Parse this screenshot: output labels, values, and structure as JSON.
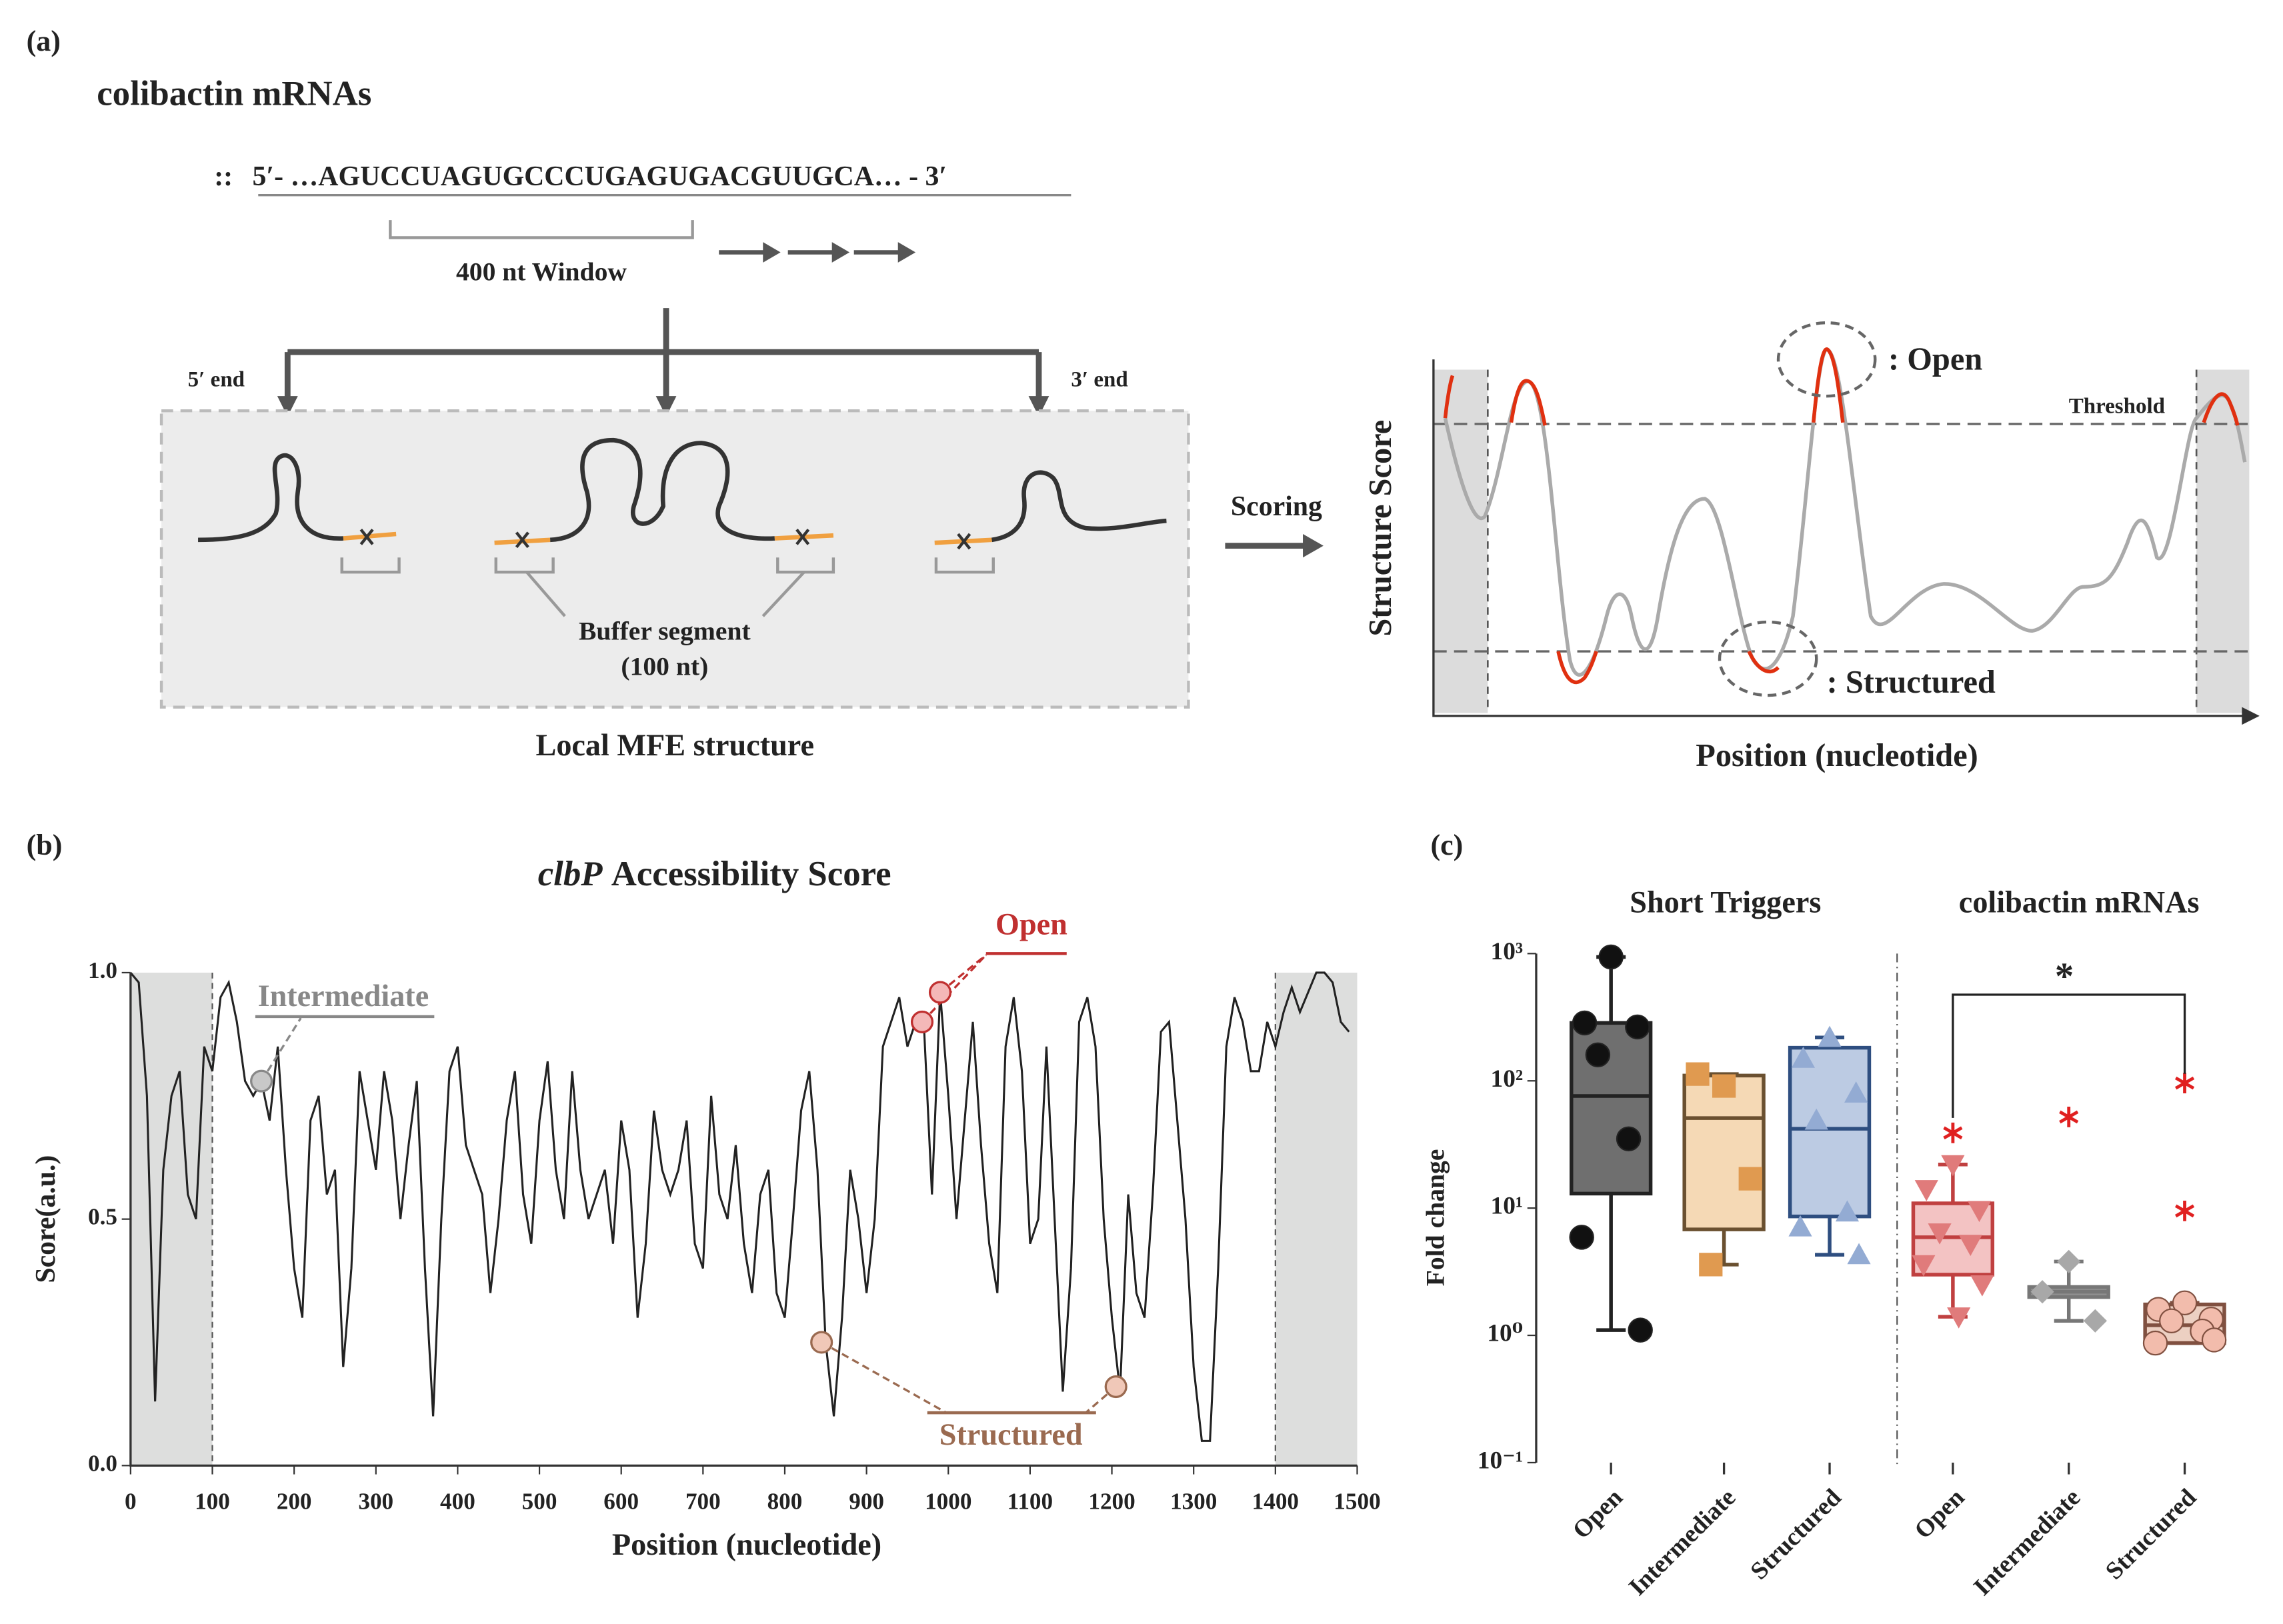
{
  "panel_a": {
    "label": "(a)",
    "title": "colibactin mRNAs",
    "prefix": "::",
    "sequence": "5′- …AGUCCUAGUGCCCUGAGUGACGUUGCA… - 3′",
    "window": "400 nt Window",
    "end5": "5′ end",
    "end3": "3′ end",
    "buffer": [
      "Buffer segment",
      "(100 nt)"
    ],
    "mfe": "Local MFE structure",
    "scoring": "Scoring",
    "score_axis": "Structure Score",
    "position_axis": "Position (nucleotide)",
    "threshold": "Threshold",
    "open": ": Open",
    "structured": ": Structured"
  },
  "chart_data": [
    {
      "type": "line",
      "panel": "(b)",
      "title": {
        "italic": "clbP",
        "text": "Accessibility Score"
      },
      "x_label": "Position (nucleotide)",
      "y_label": "Score(a.u.)",
      "xlim": [
        0,
        1500
      ],
      "ylim": [
        0,
        1
      ],
      "xticks": [
        0,
        100,
        200,
        300,
        400,
        500,
        600,
        700,
        800,
        900,
        1000,
        1100,
        1200,
        1300,
        1400,
        1500
      ],
      "yticks": [
        {
          "value": 0,
          "label": "0.0"
        },
        0.5,
        {
          "value": 1,
          "label": "1.0"
        }
      ],
      "shaded_x": [
        [
          0,
          100
        ],
        [
          1400,
          1500
        ]
      ],
      "x": [
        0,
        10,
        20,
        30,
        40,
        50,
        60,
        70,
        80,
        90,
        100,
        110,
        120,
        130,
        140,
        150,
        160,
        170,
        180,
        190,
        200,
        210,
        220,
        230,
        240,
        250,
        260,
        270,
        280,
        290,
        300,
        310,
        320,
        330,
        340,
        350,
        360,
        370,
        380,
        390,
        400,
        410,
        420,
        430,
        440,
        450,
        460,
        470,
        480,
        490,
        500,
        510,
        520,
        530,
        540,
        550,
        560,
        570,
        580,
        590,
        600,
        610,
        620,
        630,
        640,
        650,
        660,
        670,
        680,
        690,
        700,
        710,
        720,
        730,
        740,
        750,
        760,
        770,
        780,
        790,
        800,
        810,
        820,
        830,
        840,
        850,
        860,
        870,
        880,
        890,
        900,
        910,
        920,
        930,
        940,
        950,
        960,
        970,
        980,
        990,
        1000,
        1010,
        1020,
        1030,
        1040,
        1050,
        1060,
        1070,
        1080,
        1090,
        1100,
        1110,
        1120,
        1130,
        1140,
        1150,
        1160,
        1170,
        1180,
        1190,
        1200,
        1210,
        1220,
        1230,
        1240,
        1250,
        1260,
        1270,
        1280,
        1290,
        1300,
        1310,
        1320,
        1330,
        1340,
        1350,
        1360,
        1370,
        1380,
        1390,
        1400,
        1410,
        1420,
        1430,
        1440,
        1450,
        1460,
        1470,
        1480,
        1490
      ],
      "series": [
        {
          "color": "#222222",
          "values": [
            1.0,
            0.98,
            0.75,
            0.13,
            0.6,
            0.75,
            0.8,
            0.55,
            0.5,
            0.85,
            0.8,
            0.95,
            0.98,
            0.9,
            0.78,
            0.75,
            0.78,
            0.7,
            0.85,
            0.6,
            0.4,
            0.3,
            0.7,
            0.75,
            0.55,
            0.6,
            0.2,
            0.4,
            0.8,
            0.7,
            0.6,
            0.8,
            0.7,
            0.5,
            0.65,
            0.78,
            0.4,
            0.1,
            0.5,
            0.8,
            0.85,
            0.65,
            0.6,
            0.55,
            0.35,
            0.5,
            0.7,
            0.8,
            0.55,
            0.45,
            0.7,
            0.82,
            0.6,
            0.5,
            0.8,
            0.6,
            0.5,
            0.55,
            0.6,
            0.45,
            0.7,
            0.6,
            0.3,
            0.45,
            0.72,
            0.6,
            0.55,
            0.6,
            0.7,
            0.45,
            0.4,
            0.75,
            0.55,
            0.5,
            0.65,
            0.45,
            0.35,
            0.55,
            0.6,
            0.35,
            0.3,
            0.5,
            0.72,
            0.8,
            0.6,
            0.25,
            0.1,
            0.3,
            0.6,
            0.5,
            0.35,
            0.5,
            0.85,
            0.9,
            0.95,
            0.85,
            0.9,
            0.9,
            0.55,
            0.96,
            0.75,
            0.5,
            0.7,
            0.9,
            0.65,
            0.45,
            0.35,
            0.85,
            0.95,
            0.8,
            0.45,
            0.5,
            0.85,
            0.5,
            0.15,
            0.4,
            0.9,
            0.95,
            0.85,
            0.5,
            0.3,
            0.15,
            0.55,
            0.35,
            0.3,
            0.55,
            0.88,
            0.9,
            0.7,
            0.5,
            0.2,
            0.05,
            0.05,
            0.4,
            0.85,
            0.95,
            0.9,
            0.8,
            0.8,
            0.9,
            0.85,
            0.92,
            0.97,
            0.92,
            0.96,
            1.0,
            1.0,
            0.98,
            0.9,
            0.88
          ]
        }
      ],
      "annotations": [
        {
          "label": "Intermediate",
          "color": "#888888",
          "fill": "#c8c8c8",
          "x": [
            160
          ],
          "y": [
            0.78
          ]
        },
        {
          "label": "Open",
          "color": "#c03030",
          "fill": "#f4b8b8",
          "x": [
            968,
            990
          ],
          "y": [
            0.9,
            0.96
          ]
        },
        {
          "label": "Structured",
          "color": "#9a6a50",
          "fill": "#f0c8b8",
          "x": [
            845,
            1205
          ],
          "y": [
            0.25,
            0.16
          ]
        }
      ]
    },
    {
      "type": "box",
      "panel": "(c)",
      "y_label": "Fold change",
      "log": true,
      "ylim": [
        0.1,
        1000
      ],
      "yticks": [
        {
          "value": 0.1,
          "label": "10⁻¹"
        },
        {
          "value": 1,
          "label": "10⁰"
        },
        {
          "value": 10,
          "label": "10¹"
        },
        {
          "value": 100,
          "label": "10²"
        },
        {
          "value": 1000,
          "label": "10³"
        }
      ],
      "significance_label": "*",
      "groups": [
        {
          "title": "Short Triggers",
          "boxes": [
            {
              "name": "Open",
              "fill": "#6f6f6f",
              "color": "#222222",
              "point_color": "#111111",
              "marker": "circle",
              "q1": 13,
              "median": 76,
              "q3": 285,
              "whislo": 1.1,
              "whishi": 940,
              "points": [
                940,
                285,
                265,
                160,
                35,
                5.9,
                1.1
              ],
              "outliers": []
            },
            {
              "name": "Intermediate",
              "fill": "#f5d9b5",
              "color": "#6a5030",
              "point_color": "#e09a50",
              "marker": "square",
              "q1": 6.8,
              "median": 51,
              "q3": 110,
              "whislo": 3.6,
              "whishi": 113,
              "points": [
                91,
                113,
                17,
                3.6
              ],
              "outliers": []
            },
            {
              "name": "Structured",
              "fill": "#bccbe3",
              "color": "#2e4e80",
              "point_color": "#93abd3",
              "marker": "triangle",
              "q1": 8.6,
              "median": 42,
              "q3": 182,
              "whislo": 4.3,
              "whishi": 219,
              "points": [
                219,
                150,
                80,
                49,
                9.3,
                7.1,
                4.3
              ],
              "outliers": []
            }
          ]
        },
        {
          "title": "colibactin mRNAs",
          "boxes": [
            {
              "name": "Open",
              "fill": "#f3c3c3",
              "color": "#c04040",
              "point_color": "#e07b7b",
              "marker": "triangle-down",
              "q1": 3.0,
              "median": 5.9,
              "q3": 10.9,
              "whislo": 1.4,
              "whishi": 22,
              "points": [
                22,
                14,
                9.6,
                6.4,
                5.2,
                3.6,
                2.5,
                1.4
              ],
              "outliers": [
                39
              ]
            },
            {
              "name": "Intermediate",
              "fill": "#8f8f8f",
              "color": "#777777",
              "point_color": "#a8a8a8",
              "marker": "diamond",
              "q1": 2.0,
              "median": 2.2,
              "q3": 2.4,
              "whislo": 1.3,
              "whishi": 3.8,
              "points": [
                3.8,
                2.2,
                1.3
              ],
              "outliers": [
                52
              ]
            },
            {
              "name": "Structured",
              "fill": "#ecd0c2",
              "color": "#805040",
              "point_color": "#f2bcac",
              "marker": "circle",
              "q1": 0.87,
              "median": 1.2,
              "q3": 1.75,
              "whislo": 0.87,
              "whishi": 1.8,
              "points": [
                1.8,
                1.6,
                1.34,
                1.3,
                1.08,
                0.87,
                0.92
              ],
              "outliers": [
                96,
                9.5
              ]
            }
          ]
        }
      ]
    }
  ]
}
